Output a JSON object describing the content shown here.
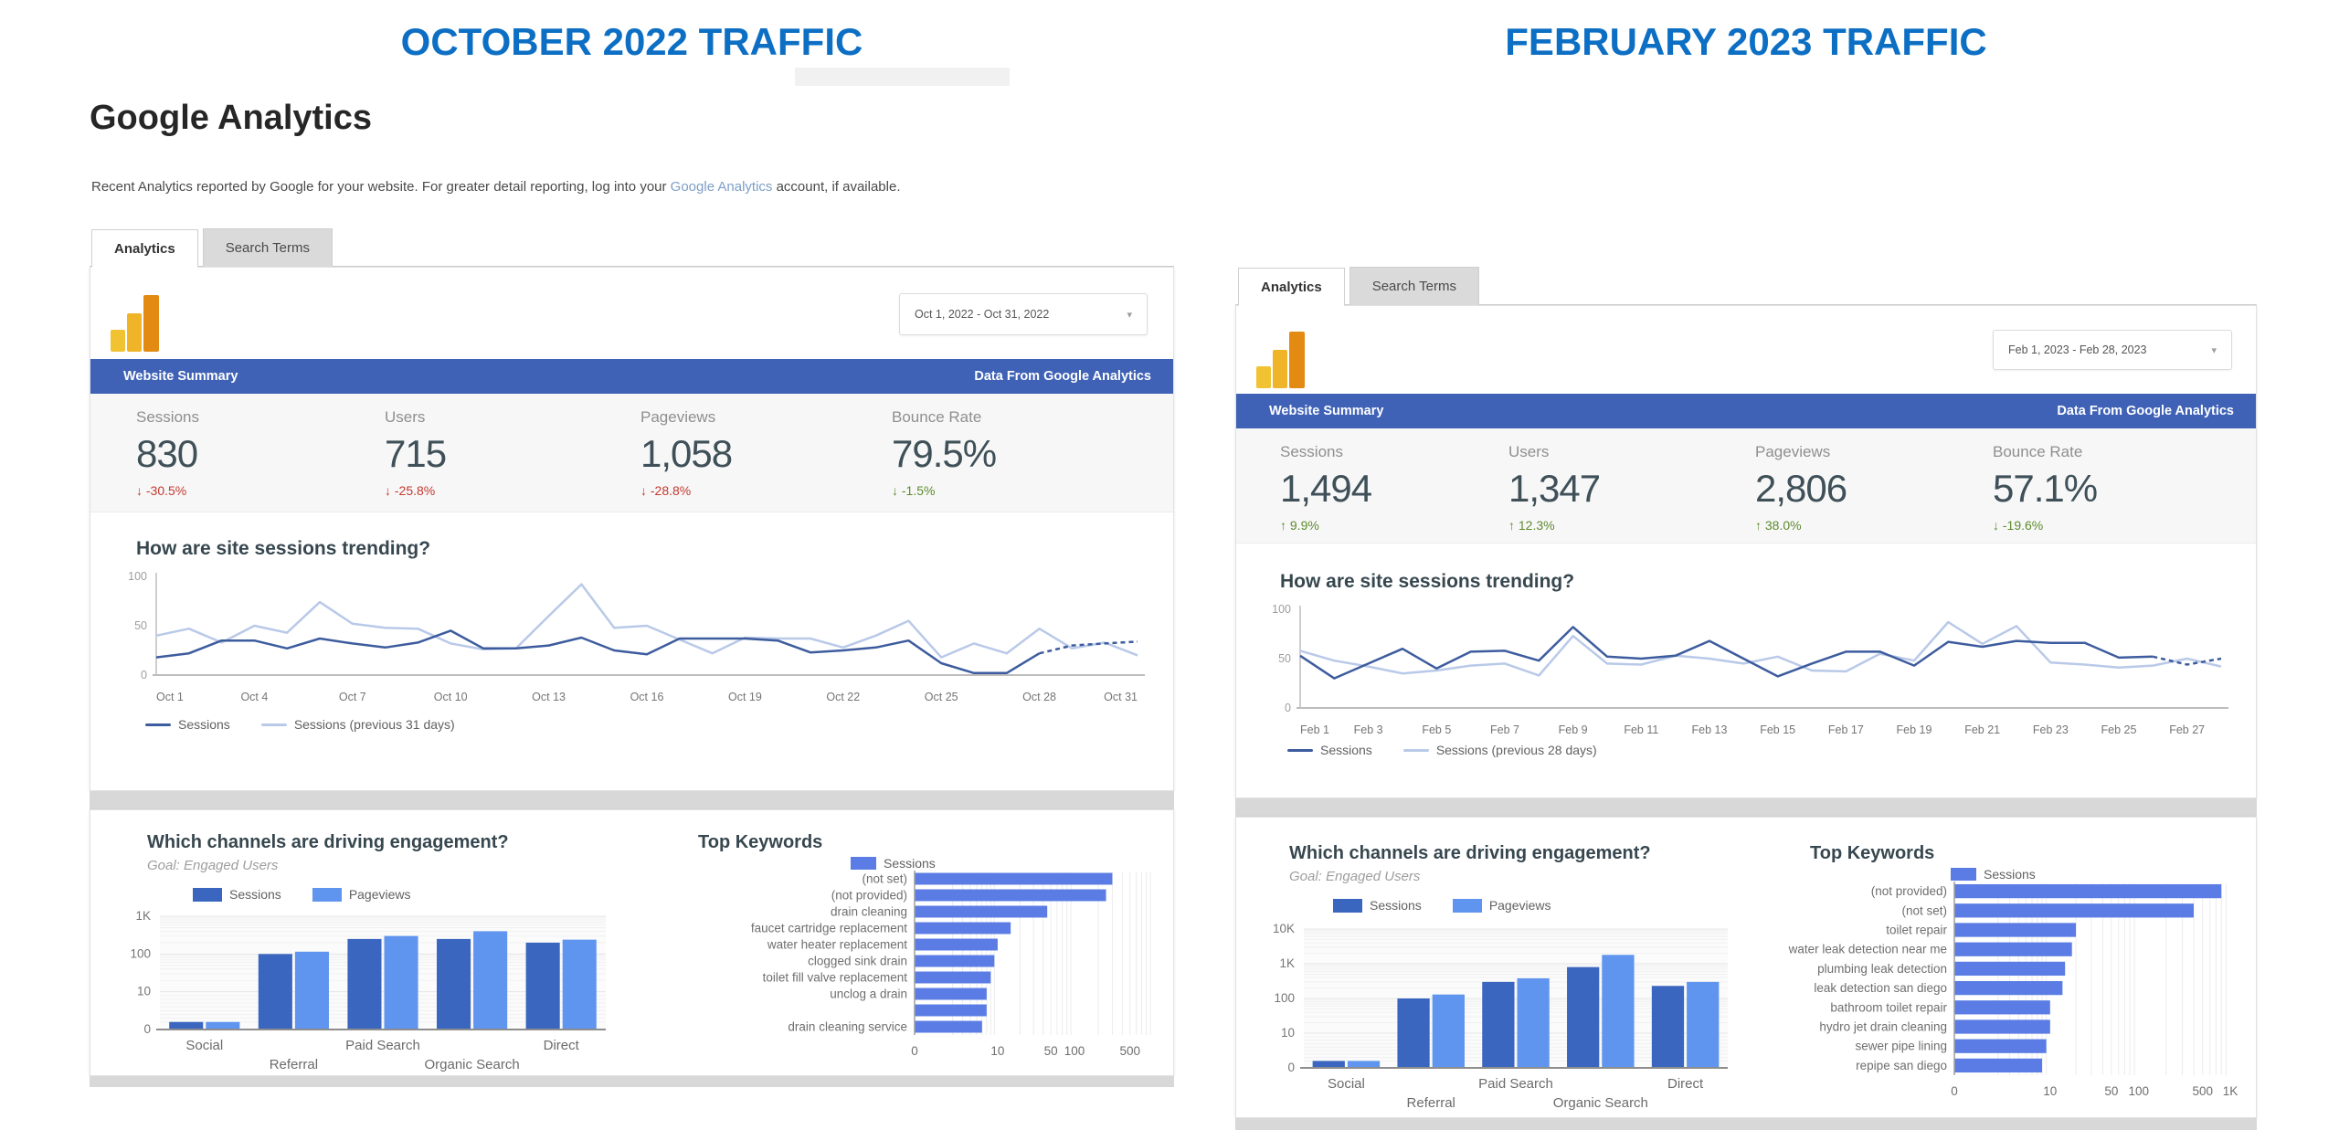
{
  "page": {
    "left_title": "OCTOBER 2022 TRAFFIC",
    "right_title": "FEBRUARY 2023 TRAFFIC"
  },
  "colors": {
    "title_blue": "#0d6fc4",
    "summary_bar_blue": "#3f62b6",
    "sessions_line": "#3d5c9e",
    "previous_line": "#b9c9e8",
    "bar_sessions": "#3a66c0",
    "bar_pageviews": "#5f95ef",
    "keyword_bar": "#5b7ce4",
    "delta_bad": "#c5392f",
    "delta_good": "#5e8b2e"
  },
  "left": {
    "heading": "Google Analytics",
    "description": {
      "pre": "Recent Analytics reported by Google for your website. For greater detail reporting, log into your ",
      "link": "Google Analytics",
      "post": " account, if available."
    },
    "tabs": {
      "analytics": "Analytics",
      "search_terms": "Search Terms"
    },
    "date_range": "Oct 1, 2022 - Oct 31, 2022",
    "summary": {
      "title": "Website Summary",
      "source": "Data From Google Analytics"
    },
    "stats": [
      {
        "label": "Sessions",
        "value": "830",
        "delta": "-30.5%",
        "direction": "down",
        "tone": "bad"
      },
      {
        "label": "Users",
        "value": "715",
        "delta": "-25.8%",
        "direction": "down",
        "tone": "bad"
      },
      {
        "label": "Pageviews",
        "value": "1,058",
        "delta": "-28.8%",
        "direction": "down",
        "tone": "bad"
      },
      {
        "label": "Bounce Rate",
        "value": "79.5%",
        "delta": "-1.5%",
        "direction": "down",
        "tone": "good"
      }
    ]
  },
  "right": {
    "tabs": {
      "analytics": "Analytics",
      "search_terms": "Search Terms"
    },
    "date_range": "Feb 1, 2023 - Feb 28, 2023",
    "summary": {
      "title": "Website Summary",
      "source": "Data From Google Analytics"
    },
    "stats": [
      {
        "label": "Sessions",
        "value": "1,494",
        "delta": "9.9%",
        "direction": "up",
        "tone": "good"
      },
      {
        "label": "Users",
        "value": "1,347",
        "delta": "12.3%",
        "direction": "up",
        "tone": "good"
      },
      {
        "label": "Pageviews",
        "value": "2,806",
        "delta": "38.0%",
        "direction": "up",
        "tone": "good"
      },
      {
        "label": "Bounce Rate",
        "value": "57.1%",
        "delta": "-19.6%",
        "direction": "down",
        "tone": "good"
      }
    ]
  },
  "chart_data": [
    {
      "id": "left-trend",
      "type": "line",
      "title": "How are site sessions trending?",
      "x_tick_labels": [
        "Oct 1",
        "Oct 4",
        "Oct 7",
        "Oct 10",
        "Oct 13",
        "Oct 16",
        "Oct 19",
        "Oct 22",
        "Oct 25",
        "Oct 28",
        "Oct 31"
      ],
      "tick_every": 3,
      "ylim": [
        0,
        100
      ],
      "yticks": [
        0,
        50,
        100
      ],
      "dashed_tail": 4,
      "series": [
        {
          "name": "Sessions",
          "values": [
            18,
            22,
            35,
            35,
            27,
            37,
            32,
            28,
            33,
            45,
            27,
            27,
            30,
            38,
            25,
            21,
            37,
            37,
            37,
            35,
            23,
            25,
            28,
            35,
            12,
            2,
            2,
            22,
            30,
            32,
            34
          ]
        },
        {
          "name": "Sessions (previous 31 days)",
          "values": [
            40,
            47,
            33,
            50,
            43,
            74,
            52,
            48,
            47,
            32,
            26,
            27,
            60,
            92,
            48,
            50,
            36,
            22,
            38,
            37,
            37,
            28,
            40,
            55,
            18,
            32,
            22,
            47,
            27,
            33,
            20
          ]
        }
      ]
    },
    {
      "id": "left-channels",
      "type": "bar",
      "title": "Which channels are driving engagement?",
      "subtitle": "Goal: Engaged Users",
      "categories": [
        "Social",
        "Referral",
        "Paid Search",
        "Organic Search",
        "Direct"
      ],
      "series": [
        {
          "name": "Sessions",
          "values": [
            2,
            100,
            250,
            250,
            200
          ]
        },
        {
          "name": "Pageviews",
          "values": [
            2,
            115,
            300,
            400,
            240
          ]
        }
      ],
      "yticks": [
        "0",
        "10",
        "100",
        "1K"
      ],
      "scale": "log"
    },
    {
      "id": "left-keywords",
      "type": "hbar",
      "title": "Top Keywords",
      "legend": "Sessions",
      "categories": [
        "(not set)",
        "(not provided)",
        "drain cleaning",
        "faucet cartridge replacement",
        "water heater replacement",
        "clogged sink drain",
        "toilet fill valve replacement",
        "unclog a drain",
        "",
        "drain cleaning service"
      ],
      "values": [
        300,
        250,
        45,
        15,
        10,
        9,
        8,
        7,
        7,
        6
      ],
      "xticks": [
        "0",
        "10",
        "50",
        "100",
        "500"
      ],
      "scale": "log"
    },
    {
      "id": "right-trend",
      "type": "line",
      "title": "How are site sessions trending?",
      "x_tick_labels": [
        "Feb 1",
        "Feb 3",
        "Feb 5",
        "Feb 7",
        "Feb 9",
        "Feb 11",
        "Feb 13",
        "Feb 15",
        "Feb 17",
        "Feb 19",
        "Feb 21",
        "Feb 23",
        "Feb 25",
        "Feb 27"
      ],
      "tick_every": 2,
      "ylim": [
        0,
        100
      ],
      "yticks": [
        0,
        50,
        100
      ],
      "dashed_tail": 3,
      "series": [
        {
          "name": "Sessions",
          "values": [
            53,
            30,
            45,
            60,
            40,
            57,
            58,
            48,
            82,
            52,
            50,
            53,
            68,
            50,
            32,
            45,
            57,
            57,
            43,
            67,
            62,
            68,
            66,
            66,
            51,
            52,
            44,
            50
          ]
        },
        {
          "name": "Sessions (previous 28 days)",
          "values": [
            58,
            48,
            42,
            35,
            38,
            43,
            45,
            33,
            73,
            45,
            44,
            53,
            50,
            45,
            52,
            38,
            37,
            55,
            48,
            87,
            65,
            83,
            46,
            44,
            41,
            43,
            50,
            42
          ]
        }
      ]
    },
    {
      "id": "right-channels",
      "type": "bar",
      "title": "Which channels are driving engagement?",
      "subtitle": "Goal: Engaged Users",
      "categories": [
        "Social",
        "Referral",
        "Paid Search",
        "Organic Search",
        "Direct"
      ],
      "series": [
        {
          "name": "Sessions",
          "values": [
            2,
            100,
            300,
            800,
            230
          ]
        },
        {
          "name": "Pageviews",
          "values": [
            2,
            130,
            380,
            1800,
            300
          ]
        }
      ],
      "yticks": [
        "0",
        "10",
        "100",
        "1K",
        "10K"
      ],
      "scale": "log"
    },
    {
      "id": "right-keywords",
      "type": "hbar",
      "title": "Top Keywords",
      "legend": "Sessions",
      "categories": [
        "(not provided)",
        "(not set)",
        "toilet repair",
        "water leak detection near me",
        "plumbing leak detection",
        "leak detection san diego",
        "bathroom toilet repair",
        "hydro jet drain cleaning",
        "sewer pipe lining",
        "repipe san diego"
      ],
      "values": [
        800,
        400,
        20,
        18,
        15,
        14,
        10,
        10,
        9,
        8
      ],
      "xticks": [
        "0",
        "10",
        "50",
        "100",
        "500",
        "1K"
      ],
      "scale": "log"
    }
  ]
}
